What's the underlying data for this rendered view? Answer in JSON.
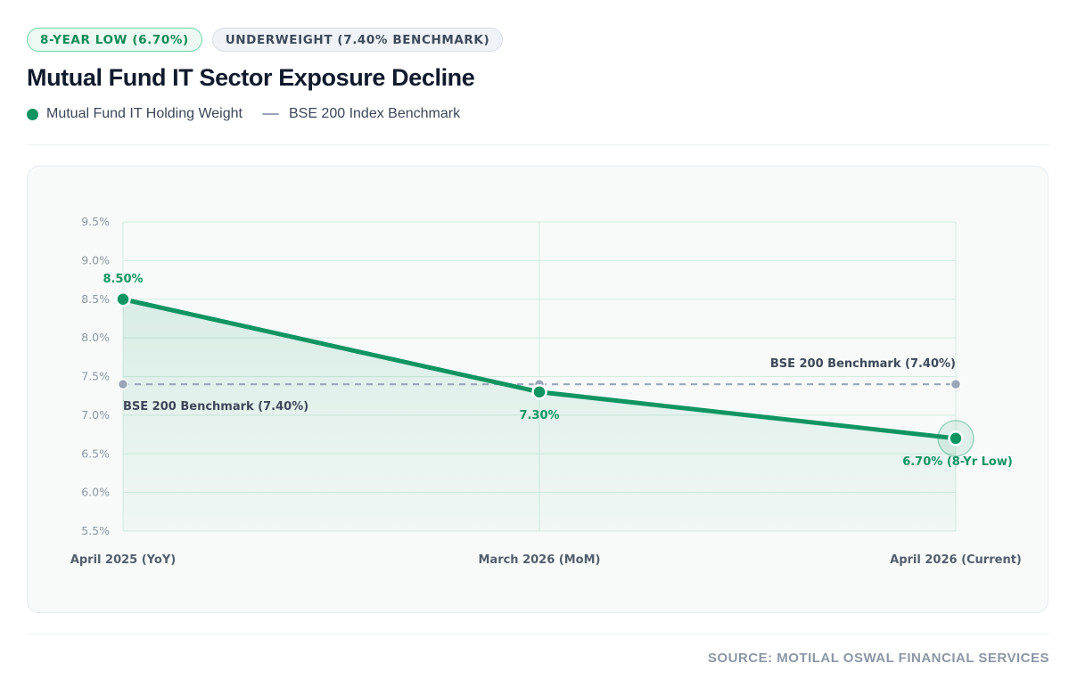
{
  "badges": {
    "low": "8-YEAR LOW (6.70%)",
    "underweight": "UNDERWEIGHT (7.40% BENCHMARK)"
  },
  "legend": {
    "series": "Mutual Fund IT Holding Weight",
    "benchmark": "BSE 200 Index Benchmark"
  },
  "source": "SOURCE: MOTILAL OSWAL FINANCIAL SERVICES",
  "colors": {
    "series": "#0f9462",
    "benchmark": "#9aa6b8",
    "grid": "#d4ece0"
  },
  "chart_data": {
    "type": "line",
    "title": "Mutual Fund IT Sector Exposure Decline",
    "categories": [
      "April 2025 (YoY)",
      "March 2026 (MoM)",
      "April 2026 (Current)"
    ],
    "series": [
      {
        "name": "Mutual Fund IT Holding Weight",
        "values": [
          8.5,
          7.3,
          6.7
        ],
        "labels": [
          "8.50%",
          "7.30%",
          "6.70% (8-Yr Low)"
        ]
      },
      {
        "name": "BSE 200 Index Benchmark",
        "values": [
          7.4,
          7.4,
          7.4
        ],
        "style": "dashed"
      }
    ],
    "benchmark_labels": [
      "BSE 200 Benchmark (7.40%)",
      "BSE 200 Benchmark (7.40%)"
    ],
    "y_ticks": [
      "9.5%",
      "9.0%",
      "8.5%",
      "8.0%",
      "7.5%",
      "7.0%",
      "6.5%",
      "6.0%",
      "5.5%"
    ],
    "ylim": [
      5.5,
      9.5
    ],
    "grid": true,
    "legend_position": "top-left"
  }
}
